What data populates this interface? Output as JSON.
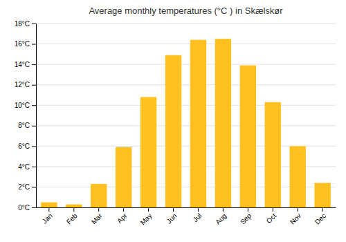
{
  "chart_data": {
    "type": "bar",
    "title": "Average monthly temperatures (°C ) in Skælskør",
    "categories": [
      "Jan",
      "Feb",
      "Mar",
      "Apr",
      "May",
      "Jun",
      "Jul",
      "Aug",
      "Sep",
      "Oct",
      "Nov",
      "Dec"
    ],
    "values": [
      0.5,
      0.3,
      2.3,
      5.9,
      10.8,
      14.9,
      16.4,
      16.5,
      13.9,
      10.3,
      6.0,
      2.4
    ],
    "color": "#FFC020",
    "ylim": [
      0,
      18
    ],
    "yticks": [
      {
        "value": 0,
        "label": "0°C"
      },
      {
        "value": 2,
        "label": "2°C"
      },
      {
        "value": 4,
        "label": "4°C"
      },
      {
        "value": 6,
        "label": "6°C"
      },
      {
        "value": 8,
        "label": "8°C"
      },
      {
        "value": 10,
        "label": "10°C"
      },
      {
        "value": 12,
        "label": "12°C"
      },
      {
        "value": 14,
        "label": "14°C"
      },
      {
        "value": 16,
        "label": "16°C"
      },
      {
        "value": 18,
        "label": "18°C"
      }
    ],
    "grid": true
  }
}
